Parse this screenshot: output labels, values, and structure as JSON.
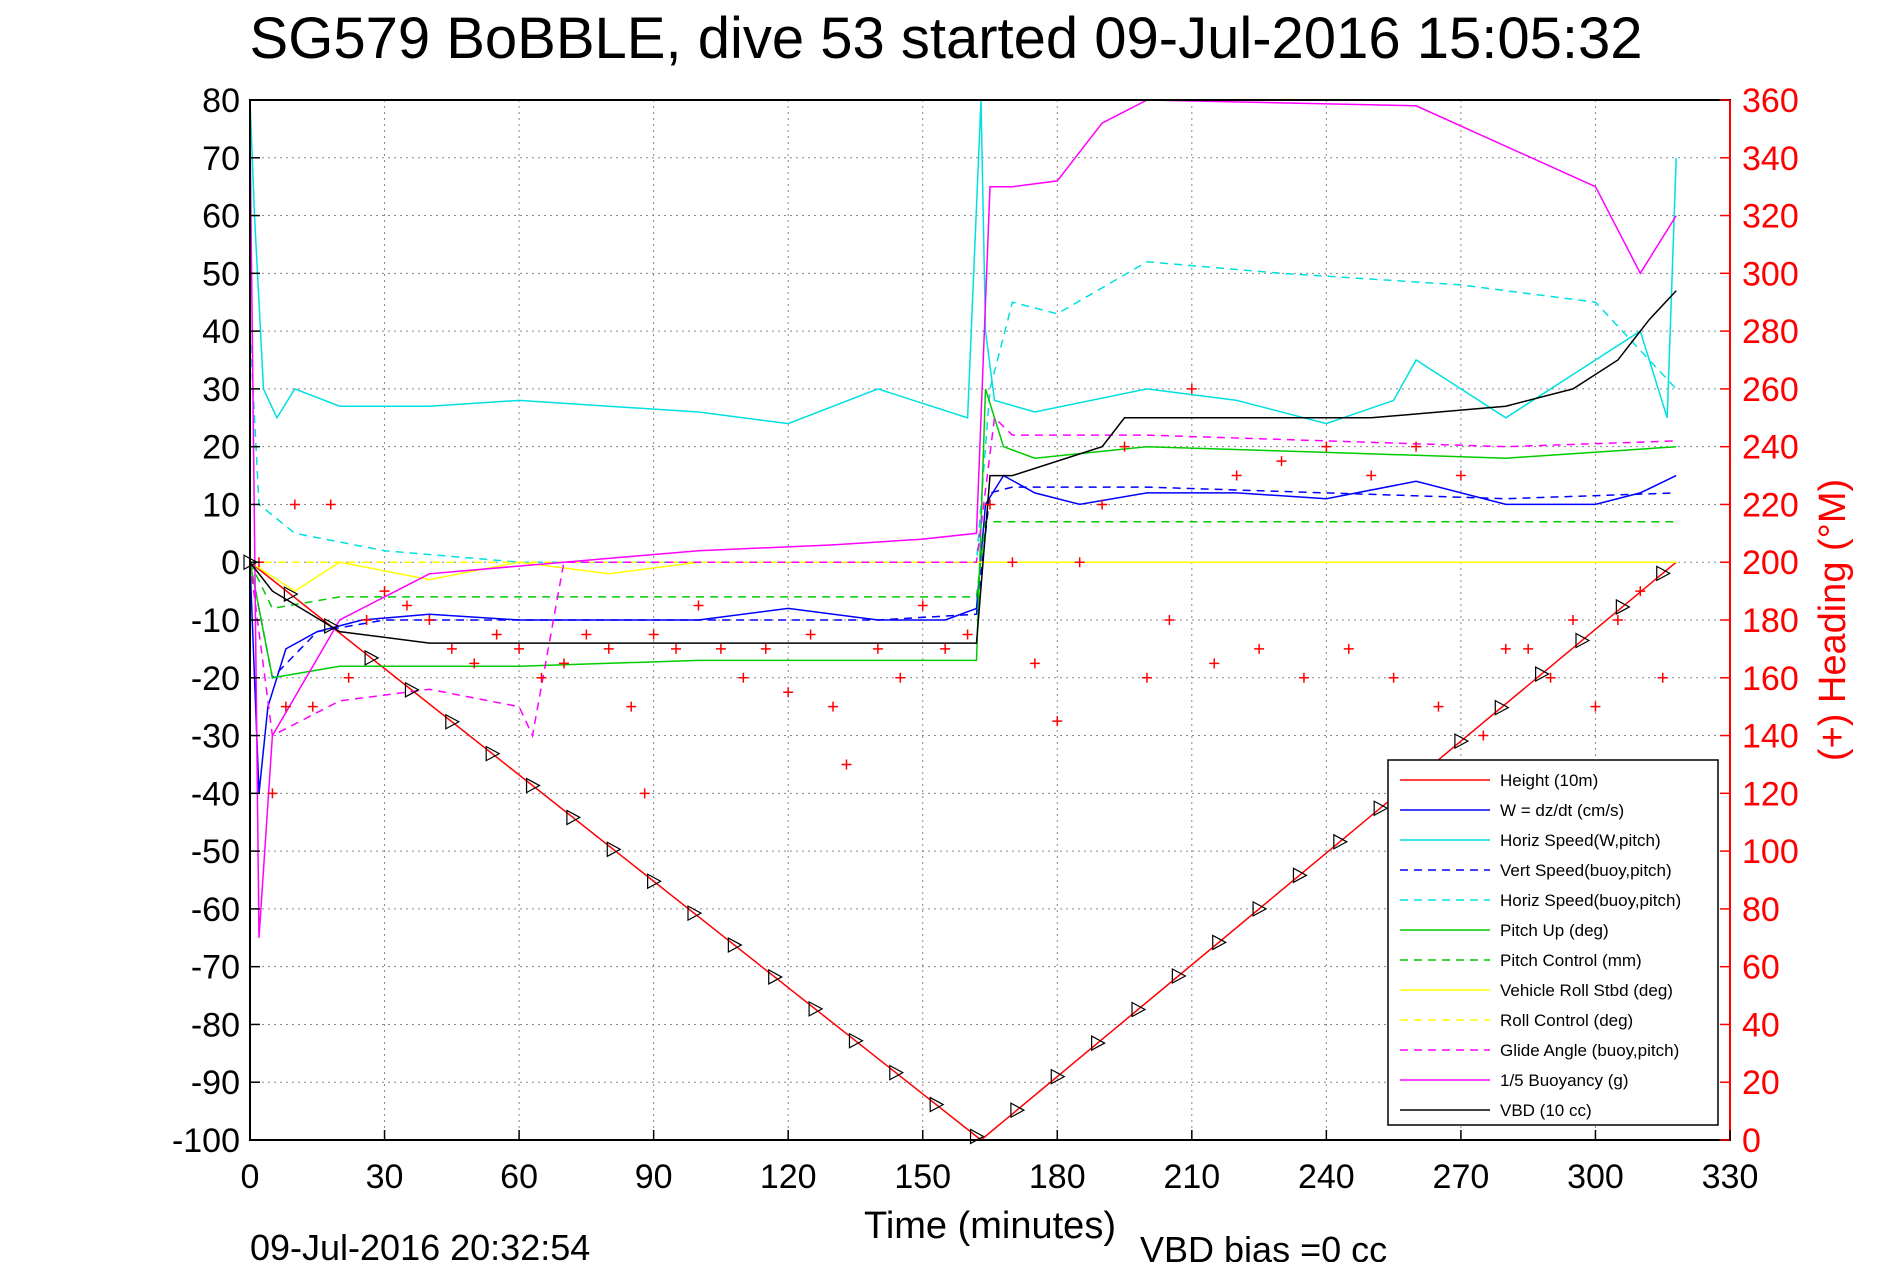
{
  "chart_data": {
    "type": "line",
    "title": "SG579 BoBBLE, dive 53 started 09-Jul-2016 15:05:32",
    "xlabel": "Time (minutes)",
    "ylabel": "",
    "ylabel_right": "(+) Heading (°M)",
    "footer_left": "09-Jul-2016 20:32:54",
    "footer_right": "VBD bias =0 cc",
    "xlim": [
      0,
      330
    ],
    "ylim": [
      -100,
      80
    ],
    "ylim_right": [
      0,
      360
    ],
    "x_ticks": [
      "0",
      "30",
      "60",
      "90",
      "120",
      "150",
      "180",
      "210",
      "240",
      "270",
      "300",
      "330"
    ],
    "y_ticks": [
      "80",
      "70",
      "60",
      "50",
      "40",
      "30",
      "20",
      "10",
      "0",
      "-10",
      "-20",
      "-30",
      "-40",
      "-50",
      "-60",
      "-70",
      "-80",
      "-90",
      "-100"
    ],
    "y_ticks_right": [
      "360",
      "340",
      "320",
      "300",
      "280",
      "260",
      "240",
      "220",
      "200",
      "180",
      "160",
      "140",
      "120",
      "100",
      "80",
      "60",
      "40",
      "20",
      "0"
    ],
    "grid": true,
    "legend_position": "lower-right",
    "colors": {
      "height": "#ff0000",
      "w": "#0000ff",
      "horiz_speed": "#00e0e0",
      "pitch": "#00cc00",
      "roll": "#ffff00",
      "glide": "#ff00ff",
      "vbd": "#000000",
      "heading": "#ff0000"
    },
    "series": [
      {
        "name": "Height (10m)",
        "color": "#ff0000",
        "style": "solid",
        "x": [
          0,
          163,
          318
        ],
        "y": [
          0,
          -100,
          0
        ]
      },
      {
        "name": "W = dz/dt (cm/s)",
        "color": "#0000ff",
        "style": "solid",
        "x": [
          0,
          2,
          4,
          8,
          15,
          25,
          40,
          60,
          80,
          100,
          120,
          140,
          155,
          162,
          164,
          168,
          175,
          185,
          200,
          220,
          240,
          260,
          280,
          300,
          310,
          318
        ],
        "y": [
          0,
          -40,
          -25,
          -15,
          -12,
          -10,
          -9,
          -10,
          -10,
          -10,
          -8,
          -10,
          -10,
          -8,
          10,
          15,
          12,
          10,
          12,
          12,
          11,
          14,
          10,
          10,
          12,
          15
        ]
      },
      {
        "name": "Horiz Speed(W,pitch)",
        "color": "#00e0e0",
        "style": "solid",
        "x": [
          0,
          1,
          3,
          6,
          10,
          20,
          40,
          60,
          80,
          100,
          120,
          140,
          160,
          163,
          164,
          166,
          175,
          200,
          220,
          240,
          255,
          260,
          280,
          300,
          310,
          316,
          318
        ],
        "y": [
          80,
          60,
          30,
          25,
          30,
          27,
          27,
          28,
          27,
          26,
          24,
          30,
          25,
          80,
          40,
          28,
          26,
          30,
          28,
          24,
          28,
          35,
          25,
          35,
          40,
          25,
          70
        ]
      },
      {
        "name": "Vert Speed(buoy,pitch)",
        "color": "#0000ff",
        "style": "dashed",
        "x": [
          0,
          5,
          15,
          30,
          60,
          100,
          140,
          162,
          165,
          170,
          200,
          240,
          280,
          318
        ],
        "y": [
          0,
          -20,
          -12,
          -10,
          -10,
          -10,
          -10,
          -9,
          12,
          13,
          13,
          12,
          11,
          12
        ]
      },
      {
        "name": "Horiz Speed(buoy,pitch)",
        "color": "#00e0e0",
        "style": "dashed",
        "x": [
          0,
          2,
          10,
          30,
          60,
          100,
          140,
          162,
          165,
          170,
          180,
          200,
          230,
          270,
          300,
          318
        ],
        "y": [
          40,
          10,
          5,
          2,
          0,
          0,
          0,
          0,
          30,
          45,
          43,
          52,
          50,
          48,
          45,
          30
        ]
      },
      {
        "name": "Pitch Up (deg)",
        "color": "#00cc00",
        "style": "solid",
        "x": [
          0,
          5,
          20,
          60,
          100,
          140,
          162,
          164,
          168,
          175,
          200,
          240,
          280,
          318
        ],
        "y": [
          0,
          -20,
          -18,
          -18,
          -17,
          -17,
          -17,
          30,
          20,
          18,
          20,
          19,
          18,
          20
        ]
      },
      {
        "name": "Pitch Control (mm)",
        "color": "#00cc00",
        "style": "dashed",
        "x": [
          0,
          5,
          20,
          60,
          100,
          140,
          162,
          164,
          170,
          200,
          240,
          280,
          318
        ],
        "y": [
          0,
          -8,
          -6,
          -6,
          -6,
          -6,
          -6,
          7,
          7,
          7,
          7,
          7,
          7
        ]
      },
      {
        "name": "Vehicle Roll Stbd (deg)",
        "color": "#ffff00",
        "style": "solid",
        "x": [
          0,
          10,
          20,
          40,
          60,
          80,
          100,
          120,
          140,
          160,
          170,
          190,
          210,
          230,
          250,
          270,
          290,
          310,
          318
        ],
        "y": [
          0,
          -5,
          0,
          -3,
          0,
          -2,
          0,
          0,
          0,
          0,
          0,
          0,
          0,
          0,
          0,
          0,
          0,
          0,
          0
        ]
      },
      {
        "name": "Roll Control (deg)",
        "color": "#ffff00",
        "style": "dashed",
        "x": [
          0,
          20,
          40,
          60,
          80,
          100,
          120,
          140,
          160,
          180,
          200,
          220,
          240,
          260,
          280,
          300,
          318
        ],
        "y": [
          0,
          0,
          0,
          0,
          0,
          0,
          0,
          0,
          0,
          0,
          0,
          0,
          0,
          0,
          0,
          0,
          0
        ]
      },
      {
        "name": "Glide Angle (buoy,pitch)",
        "color": "#ff00ff",
        "style": "dashed",
        "x": [
          0,
          5,
          20,
          40,
          60,
          63,
          70,
          100,
          140,
          162,
          166,
          170,
          200,
          240,
          280,
          318
        ],
        "y": [
          0,
          -30,
          -24,
          -22,
          -25,
          -30,
          0,
          0,
          0,
          0,
          25,
          22,
          22,
          21,
          20,
          21
        ]
      },
      {
        "name": "1/5 Buoyancy (g)",
        "color": "#ff00ff",
        "style": "solid",
        "x": [
          0,
          2,
          5,
          20,
          40,
          70,
          100,
          130,
          150,
          162,
          165,
          170,
          180,
          190,
          195,
          200,
          260,
          300,
          310,
          318
        ],
        "y": [
          75,
          -65,
          -30,
          -10,
          -2,
          0,
          2,
          3,
          4,
          5,
          65,
          65,
          66,
          76,
          78,
          80,
          79,
          65,
          50,
          60
        ]
      },
      {
        "name": "VBD (10 cc)",
        "color": "#000000",
        "style": "solid",
        "x": [
          0,
          5,
          20,
          40,
          60,
          100,
          140,
          160,
          162,
          165,
          170,
          190,
          195,
          220,
          250,
          280,
          295,
          305,
          312,
          318
        ],
        "y": [
          0,
          -5,
          -12,
          -14,
          -14,
          -14,
          -14,
          -14,
          -14,
          15,
          15,
          20,
          25,
          25,
          25,
          27,
          30,
          35,
          42,
          47
        ]
      }
    ],
    "heading_points": {
      "name": "(+) Heading (°M)",
      "color": "#ff0000",
      "x": [
        2,
        5,
        8,
        10,
        14,
        18,
        22,
        26,
        30,
        35,
        40,
        45,
        50,
        55,
        60,
        65,
        70,
        75,
        80,
        85,
        88,
        90,
        95,
        100,
        105,
        110,
        115,
        120,
        125,
        130,
        133,
        140,
        145,
        150,
        155,
        160,
        165,
        170,
        175,
        180,
        185,
        190,
        195,
        200,
        205,
        210,
        215,
        220,
        225,
        230,
        235,
        240,
        245,
        250,
        255,
        260,
        265,
        270,
        275,
        280,
        285,
        290,
        295,
        300,
        305,
        310,
        315
      ],
      "y": [
        200,
        120,
        150,
        220,
        150,
        220,
        160,
        180,
        190,
        185,
        180,
        170,
        165,
        175,
        170,
        160,
        165,
        175,
        170,
        150,
        120,
        175,
        170,
        185,
        170,
        160,
        170,
        155,
        175,
        150,
        130,
        170,
        160,
        185,
        170,
        175,
        220,
        200,
        165,
        145,
        200,
        220,
        240,
        160,
        180,
        260,
        165,
        230,
        170,
        235,
        160,
        240,
        170,
        230,
        160,
        240,
        150,
        230,
        140,
        170,
        170,
        160,
        180,
        150,
        180,
        190,
        160
      ]
    }
  }
}
